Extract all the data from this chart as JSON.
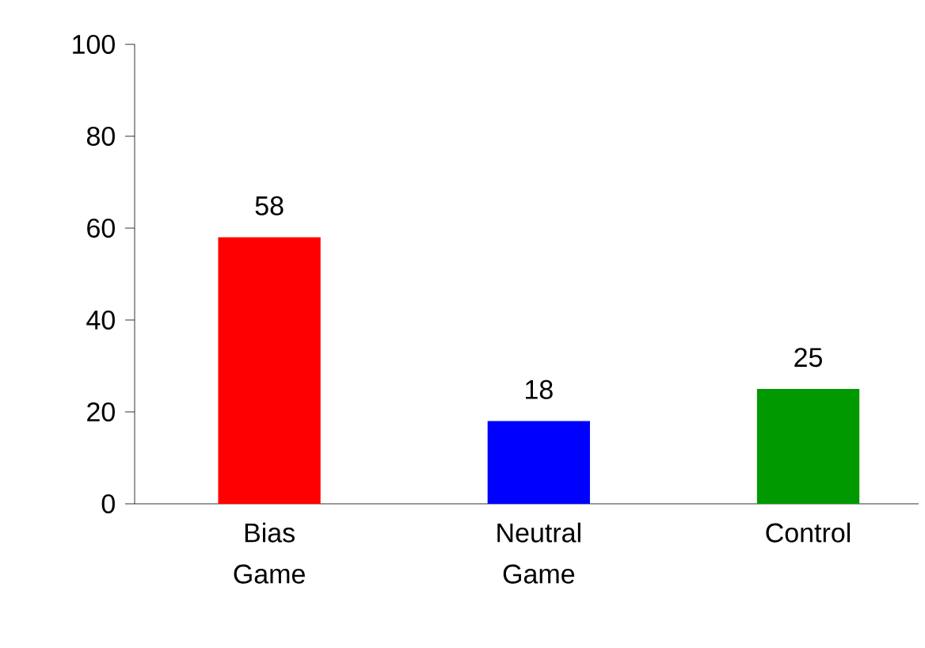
{
  "chart_data": {
    "type": "bar",
    "categories": [
      "Bias Game",
      "Neutral Game",
      "Control"
    ],
    "values": [
      58,
      18,
      25
    ],
    "colors": [
      "#ff0000",
      "#0000ff",
      "#009900"
    ],
    "ylim": [
      0,
      100
    ],
    "yticks": [
      0,
      20,
      40,
      60,
      80,
      100
    ],
    "data_labels": true
  }
}
